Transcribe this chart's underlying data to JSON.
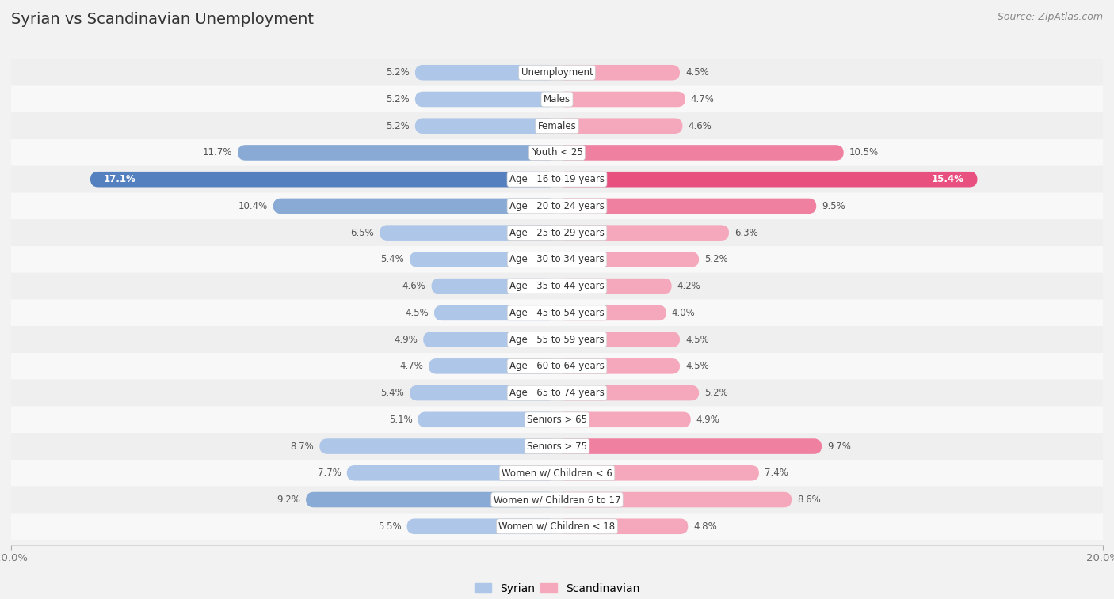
{
  "title": "Syrian vs Scandinavian Unemployment",
  "source": "Source: ZipAtlas.com",
  "categories": [
    "Unemployment",
    "Males",
    "Females",
    "Youth < 25",
    "Age | 16 to 19 years",
    "Age | 20 to 24 years",
    "Age | 25 to 29 years",
    "Age | 30 to 34 years",
    "Age | 35 to 44 years",
    "Age | 45 to 54 years",
    "Age | 55 to 59 years",
    "Age | 60 to 64 years",
    "Age | 65 to 74 years",
    "Seniors > 65",
    "Seniors > 75",
    "Women w/ Children < 6",
    "Women w/ Children 6 to 17",
    "Women w/ Children < 18"
  ],
  "syrian": [
    5.2,
    5.2,
    5.2,
    11.7,
    17.1,
    10.4,
    6.5,
    5.4,
    4.6,
    4.5,
    4.9,
    4.7,
    5.4,
    5.1,
    8.7,
    7.7,
    9.2,
    5.5
  ],
  "scandinavian": [
    4.5,
    4.7,
    4.6,
    10.5,
    15.4,
    9.5,
    6.3,
    5.2,
    4.2,
    4.0,
    4.5,
    4.5,
    5.2,
    4.9,
    9.7,
    7.4,
    8.6,
    4.8
  ],
  "syrian_color_normal": "#aec6e8",
  "scandinavian_color_normal": "#f5a8bc",
  "syrian_color_medium": "#88aad4",
  "scandinavian_color_medium": "#f080a0",
  "syrian_color_highlight": "#5580c0",
  "scandinavian_color_highlight": "#e85080",
  "bg_even": "#efefef",
  "bg_odd": "#f8f8f8",
  "max_val": 20.0,
  "label_fontsize": 8.5,
  "title_fontsize": 14,
  "source_fontsize": 9
}
